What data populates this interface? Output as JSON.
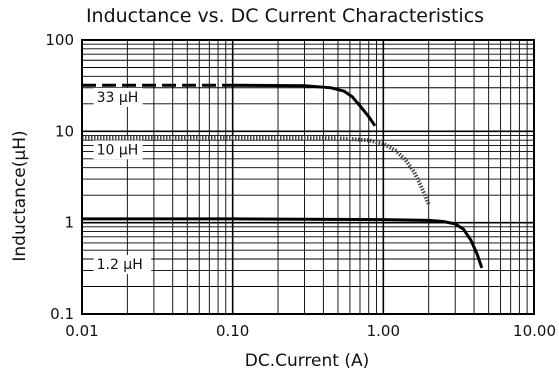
{
  "chart_data": {
    "type": "line",
    "title": "Inductance vs. DC Current Characteristics",
    "xlabel": "DC.Current (A)",
    "ylabel": "Inductance(μH)",
    "x_scale": "log",
    "y_scale": "log",
    "xlim": [
      0.01,
      10
    ],
    "ylim": [
      0.1,
      100
    ],
    "grid": true,
    "x_ticks": [
      {
        "value": 0.01,
        "label": "0.01"
      },
      {
        "value": 0.1,
        "label": "0.10"
      },
      {
        "value": 1,
        "label": "1.00"
      },
      {
        "value": 10,
        "label": "10.00"
      }
    ],
    "y_ticks": [
      {
        "value": 0.1,
        "label": "0.1"
      },
      {
        "value": 1,
        "label": "1"
      },
      {
        "value": 10,
        "label": "10"
      },
      {
        "value": 100,
        "label": "100"
      }
    ],
    "series": [
      {
        "annotation": "33 μH",
        "annotation_at": [
          0.0125,
          21
        ],
        "line_style": "dashed-then-solid",
        "x": [
          0.01,
          0.1,
          0.3,
          0.45,
          0.55,
          0.62,
          0.7,
          0.8,
          0.88
        ],
        "y": [
          32,
          32,
          31.5,
          30,
          27.5,
          24,
          19,
          14.5,
          11.5
        ]
      },
      {
        "annotation": "10 μH",
        "annotation_at": [
          0.0125,
          5.6
        ],
        "line_style": "dotted",
        "x": [
          0.01,
          0.1,
          0.5,
          0.8,
          1.0,
          1.2,
          1.4,
          1.6,
          1.8,
          2.0
        ],
        "y": [
          8.5,
          8.5,
          8.4,
          8.0,
          7.3,
          6.2,
          4.9,
          3.6,
          2.4,
          1.6
        ]
      },
      {
        "annotation": "1.2 μH",
        "annotation_at": [
          0.0125,
          0.31
        ],
        "line_style": "solid",
        "x": [
          0.01,
          0.1,
          1.0,
          2.0,
          2.5,
          3.0,
          3.4,
          3.8,
          4.2,
          4.5
        ],
        "y": [
          1.1,
          1.1,
          1.08,
          1.06,
          1.03,
          0.97,
          0.85,
          0.65,
          0.45,
          0.32
        ]
      }
    ]
  }
}
